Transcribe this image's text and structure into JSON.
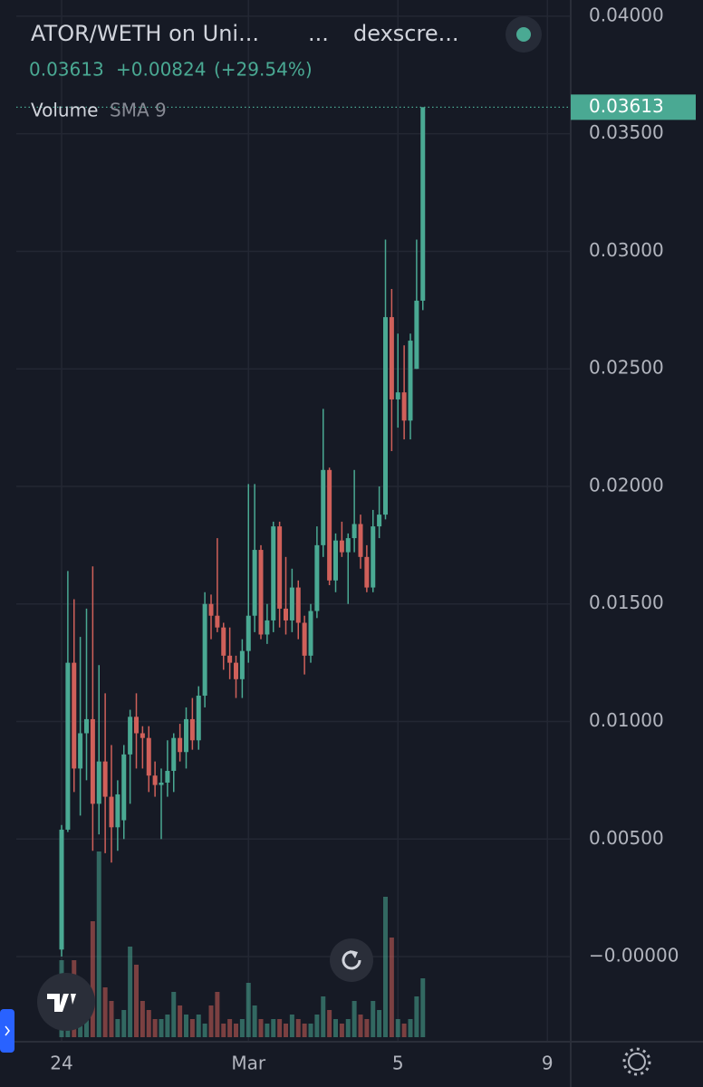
{
  "chart_data": {
    "type": "candlestick",
    "title": "ATOR/WETH on Uni...",
    "title_sep": "...",
    "source": "dexscre...",
    "change": "+0.00824",
    "change_pct": "(+29.54%)",
    "volume_label": "Volume",
    "sma_label": "SMA 9",
    "up_color": "#4aa993",
    "down_color": "#d0605a",
    "grid": true,
    "ylim": [
      -0.00362,
      0.04069
    ],
    "yticks": [
      {
        "value": 0,
        "label": "−0.00000"
      },
      {
        "value": 0.005,
        "label": "0.00500"
      },
      {
        "value": 0.01,
        "label": "0.01000"
      },
      {
        "value": 0.015,
        "label": "0.01500"
      },
      {
        "value": 0.02,
        "label": "0.02000"
      },
      {
        "value": 0.025,
        "label": "0.02500"
      },
      {
        "value": 0.03,
        "label": "0.03000"
      },
      {
        "value": 0.035,
        "label": "0.03500"
      },
      {
        "value": 0.04,
        "label": "0.04000"
      }
    ],
    "categories": [
      "24",
      null,
      null,
      null,
      null,
      null,
      null,
      null,
      null,
      null,
      null,
      null,
      null,
      null,
      null,
      null,
      null,
      null,
      null,
      null,
      null,
      null,
      null,
      null,
      null,
      null,
      null,
      null,
      null,
      null,
      "Mar",
      null,
      null,
      null,
      null,
      null,
      null,
      null,
      null,
      null,
      null,
      null,
      null,
      null,
      null,
      null,
      null,
      null,
      null,
      null,
      null,
      null,
      null,
      null,
      "5",
      null,
      null,
      null,
      null,
      null,
      null,
      null,
      null,
      null,
      null,
      null,
      null,
      null,
      null,
      null,
      null,
      null,
      null,
      null,
      null,
      null,
      null,
      null,
      "9",
      null,
      null
    ],
    "open": [
      0.0003,
      0.0054,
      0.0125,
      0.008,
      0.0095,
      0.0101,
      0.0065,
      0.0083,
      0.0068,
      0.0055,
      0.0058,
      0.0086,
      0.0102,
      0.0095,
      0.0093,
      0.0077,
      0.0073,
      0.0074,
      0.0079,
      0.0093,
      0.0087,
      0.0101,
      0.0092,
      0.0111,
      0.015,
      0.0145,
      0.014,
      0.0128,
      0.0125,
      0.0118,
      0.013,
      0.0145,
      0.0173,
      0.0137,
      0.0143,
      0.0183,
      0.0148,
      0.0143,
      0.0157,
      0.0142,
      0.0128,
      0.0147,
      0.0175,
      0.0207,
      0.016,
      0.0177,
      0.0172,
      0.0178,
      0.0184,
      0.017,
      0.0157,
      0.0183,
      0.0188,
      0.0272,
      0.0237,
      0.024,
      0.0228,
      0.025,
      0.0279,
      null,
      null,
      null,
      null,
      null,
      null,
      null,
      null,
      null,
      null,
      null,
      null,
      null,
      null,
      null,
      null,
      null,
      null,
      null,
      null,
      null,
      null
    ],
    "high": [
      0.0056,
      0.0164,
      0.0152,
      0.0136,
      0.0148,
      0.0166,
      0.0124,
      0.0112,
      0.009,
      0.0075,
      0.009,
      0.0105,
      0.0112,
      0.0098,
      0.0098,
      0.0083,
      0.008,
      0.0092,
      0.0095,
      0.0099,
      0.0106,
      0.011,
      0.0115,
      0.0155,
      0.0154,
      0.0178,
      0.0142,
      0.014,
      0.0128,
      0.0135,
      0.0201,
      0.0201,
      0.0175,
      0.015,
      0.0185,
      0.0185,
      0.017,
      0.0165,
      0.016,
      0.0145,
      0.015,
      0.0183,
      0.0233,
      0.0208,
      0.018,
      0.0185,
      0.018,
      0.0207,
      0.0188,
      0.0175,
      0.019,
      0.02,
      0.0305,
      0.0284,
      0.0265,
      0.026,
      0.0265,
      0.0305,
      0.03613,
      null,
      null,
      null,
      null,
      null,
      null,
      null,
      null,
      null,
      null,
      null,
      null,
      null,
      null,
      null,
      null,
      null,
      null,
      null,
      null,
      null,
      null
    ],
    "low": [
      0,
      0.0053,
      0.007,
      0.006,
      0.0075,
      0.0045,
      0.0052,
      0.0044,
      0.004,
      0.0045,
      0.005,
      0.0065,
      0.008,
      0.008,
      0.007,
      0.0068,
      0.005,
      0.0068,
      0.007,
      0.0083,
      0.008,
      0.0088,
      0.0088,
      0.0106,
      0.0135,
      0.0138,
      0.0122,
      0.0118,
      0.011,
      0.011,
      0.0125,
      0.0138,
      0.0135,
      0.0133,
      0.0138,
      0.014,
      0.0137,
      0.0138,
      0.0135,
      0.012,
      0.0125,
      0.0144,
      0.017,
      0.0158,
      0.0155,
      0.017,
      0.015,
      0.0172,
      0.0165,
      0.0155,
      0.0155,
      0.0178,
      0.0186,
      0.0215,
      0.0225,
      0.022,
      0.022,
      0.025,
      0.0275,
      null,
      null,
      null,
      null,
      null,
      null,
      null,
      null,
      null,
      null,
      null,
      null,
      null,
      null,
      null,
      null,
      null,
      null,
      null,
      null,
      null,
      null
    ],
    "close": [
      0.0054,
      0.0125,
      0.008,
      0.0095,
      0.0101,
      0.0065,
      0.0083,
      0.0068,
      0.0055,
      0.0069,
      0.0086,
      0.0102,
      0.0095,
      0.0093,
      0.0077,
      0.0073,
      0.0074,
      0.0079,
      0.0093,
      0.0087,
      0.0101,
      0.0092,
      0.0111,
      0.015,
      0.0145,
      0.014,
      0.0128,
      0.0125,
      0.0118,
      0.013,
      0.0145,
      0.0173,
      0.0137,
      0.0143,
      0.0183,
      0.0148,
      0.0143,
      0.0157,
      0.0142,
      0.0128,
      0.0147,
      0.0175,
      0.0207,
      0.016,
      0.0177,
      0.0172,
      0.0178,
      0.0184,
      0.017,
      0.0157,
      0.0183,
      0.0188,
      0.0272,
      0.0237,
      0.024,
      0.0228,
      0.0262,
      0.0279,
      0.03613,
      null,
      null,
      null,
      null,
      null,
      null,
      null,
      null,
      null,
      null,
      null,
      null,
      null,
      null,
      null,
      null,
      null,
      null,
      null,
      null,
      null,
      null
    ],
    "volume": [
      85,
      65,
      85,
      60,
      30,
      128,
      205,
      55,
      40,
      20,
      30,
      100,
      80,
      40,
      30,
      20,
      20,
      25,
      50,
      35,
      25,
      20,
      25,
      15,
      35,
      50,
      15,
      20,
      15,
      20,
      60,
      35,
      20,
      15,
      20,
      20,
      15,
      25,
      20,
      15,
      15,
      25,
      45,
      30,
      20,
      15,
      20,
      40,
      25,
      20,
      40,
      30,
      155,
      110,
      20,
      15,
      20,
      45,
      65,
      null,
      null,
      null,
      null,
      null,
      null,
      null,
      null,
      null,
      null,
      null,
      null,
      null,
      null,
      null,
      null,
      null,
      null,
      null,
      null,
      null,
      null
    ]
  }
}
